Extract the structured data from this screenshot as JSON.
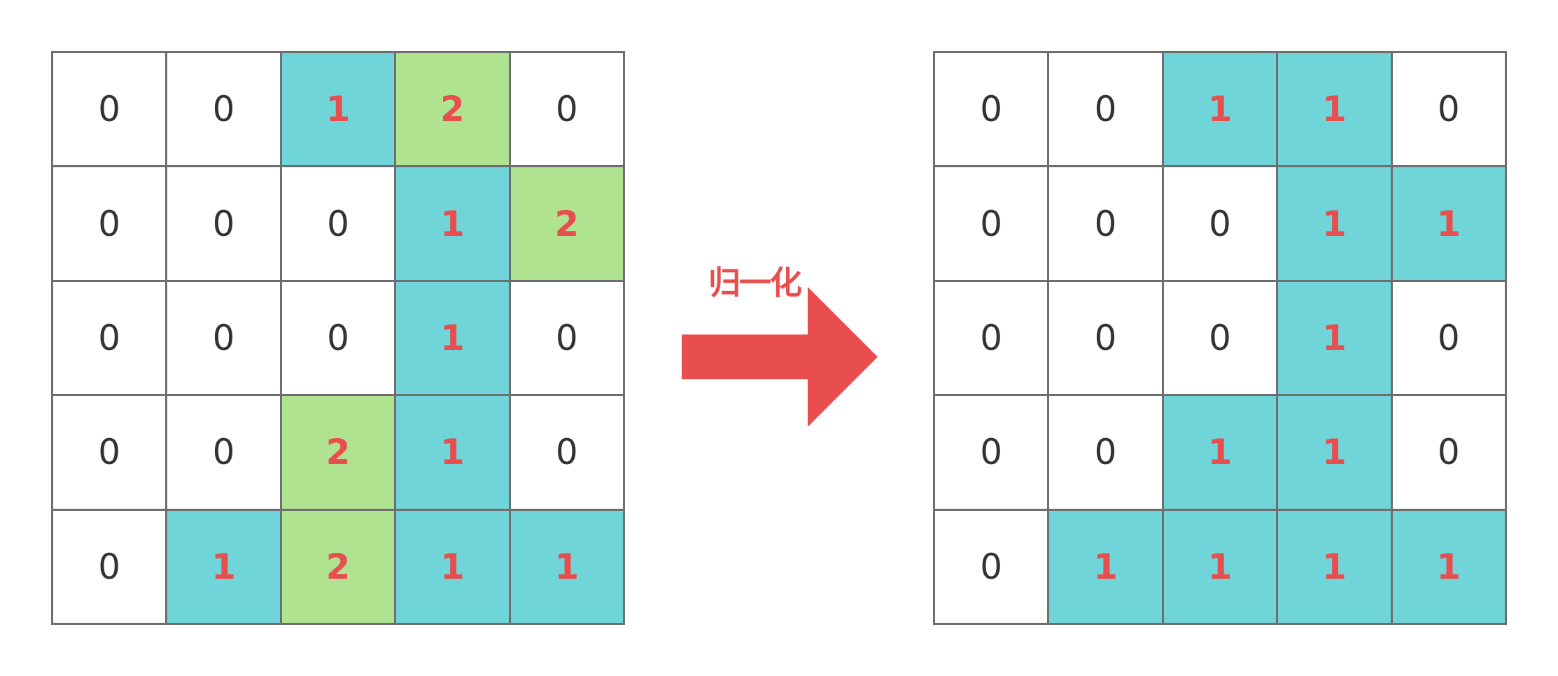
{
  "colors": {
    "teal": "#70d5d8",
    "green": "#b0e390",
    "white": "#ffffff",
    "highlight_text": "#e84e4e",
    "zero_text": "#333333",
    "grid_line": "#6e6e6e",
    "arrow": "#e84e4e"
  },
  "left_grid": {
    "rows": [
      [
        "0",
        "0",
        "1",
        "2",
        "0"
      ],
      [
        "0",
        "0",
        "0",
        "1",
        "2"
      ],
      [
        "0",
        "0",
        "0",
        "1",
        "0"
      ],
      [
        "0",
        "0",
        "2",
        "1",
        "0"
      ],
      [
        "0",
        "1",
        "2",
        "1",
        "1"
      ]
    ]
  },
  "arrow": {
    "label": "归一化",
    "icon": "right-arrow-icon"
  },
  "right_grid": {
    "rows": [
      [
        "0",
        "0",
        "1",
        "1",
        "0"
      ],
      [
        "0",
        "0",
        "0",
        "1",
        "1"
      ],
      [
        "0",
        "0",
        "0",
        "1",
        "0"
      ],
      [
        "0",
        "0",
        "1",
        "1",
        "0"
      ],
      [
        "0",
        "1",
        "1",
        "1",
        "1"
      ]
    ]
  }
}
